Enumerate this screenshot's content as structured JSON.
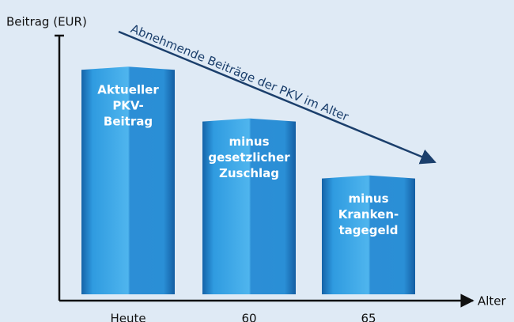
{
  "chart_data": {
    "type": "bar",
    "y_label": "Beitrag (EUR)",
    "x_label": "Alter",
    "annotation": "Abnehmende Beiträge der PKV im Alter",
    "categories": [
      "Heute",
      "60",
      "65"
    ],
    "values": [
      88,
      68,
      46
    ],
    "bar_labels": [
      [
        "Aktueller",
        "PKV-",
        "Beitrag"
      ],
      [
        "minus",
        "gesetzlicher",
        "Zuschlag"
      ],
      [
        "minus",
        "Kranken-",
        "tagegeld"
      ]
    ],
    "color": "#2a8fd6",
    "ylim": [
      0,
      100
    ]
  }
}
